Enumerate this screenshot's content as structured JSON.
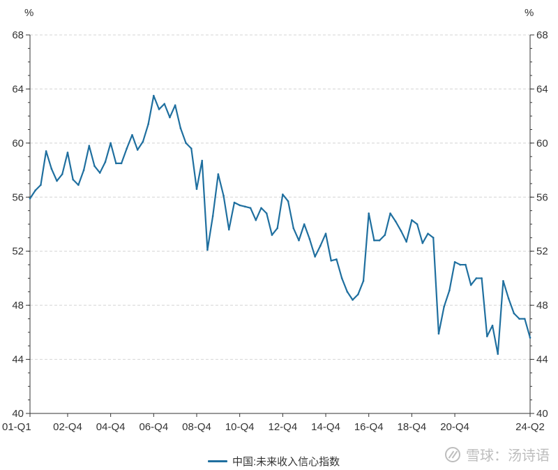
{
  "chart_data": {
    "type": "line",
    "title": "",
    "y_unit_left": "%",
    "y_unit_right": "%",
    "ylim": [
      40,
      68
    ],
    "yticks": [
      40,
      44,
      48,
      52,
      56,
      60,
      64,
      68
    ],
    "grid": true,
    "legend_position": "bottom",
    "xticks": [
      "01-Q1",
      "02-Q4",
      "04-Q4",
      "06-Q4",
      "08-Q4",
      "10-Q4",
      "12-Q4",
      "14-Q4",
      "16-Q4",
      "18-Q4",
      "20-Q4",
      "24-Q2"
    ],
    "x": [
      "01-Q1",
      "01-Q2",
      "01-Q3",
      "01-Q4",
      "02-Q1",
      "02-Q2",
      "02-Q3",
      "02-Q4",
      "03-Q1",
      "03-Q2",
      "03-Q3",
      "03-Q4",
      "04-Q1",
      "04-Q2",
      "04-Q3",
      "04-Q4",
      "05-Q1",
      "05-Q2",
      "05-Q3",
      "05-Q4",
      "06-Q1",
      "06-Q2",
      "06-Q3",
      "06-Q4",
      "07-Q1",
      "07-Q2",
      "07-Q3",
      "07-Q4",
      "08-Q1",
      "08-Q2",
      "08-Q3",
      "08-Q4",
      "09-Q1",
      "09-Q2",
      "09-Q3",
      "09-Q4",
      "10-Q1",
      "10-Q2",
      "10-Q3",
      "10-Q4",
      "11-Q1",
      "11-Q2",
      "11-Q3",
      "11-Q4",
      "12-Q1",
      "12-Q2",
      "12-Q3",
      "12-Q4",
      "13-Q1",
      "13-Q2",
      "13-Q3",
      "13-Q4",
      "14-Q1",
      "14-Q2",
      "14-Q3",
      "14-Q4",
      "15-Q1",
      "15-Q2",
      "15-Q3",
      "15-Q4",
      "16-Q1",
      "16-Q2",
      "16-Q3",
      "16-Q4",
      "17-Q1",
      "17-Q2",
      "17-Q3",
      "17-Q4",
      "18-Q1",
      "18-Q2",
      "18-Q3",
      "18-Q4",
      "19-Q1",
      "19-Q2",
      "19-Q3",
      "19-Q4",
      "20-Q1",
      "20-Q2",
      "20-Q3",
      "20-Q4",
      "21-Q1",
      "21-Q2",
      "21-Q3",
      "21-Q4",
      "22-Q1",
      "22-Q2",
      "22-Q3",
      "22-Q4",
      "23-Q1",
      "23-Q2",
      "23-Q3",
      "23-Q4",
      "24-Q1",
      "24-Q2"
    ],
    "series": [
      {
        "name": "中国:未来收入信心指数",
        "color": "#1f6f9f",
        "values": [
          55.9,
          56.5,
          56.9,
          59.4,
          58.1,
          57.2,
          57.7,
          59.3,
          57.3,
          56.9,
          58.0,
          59.8,
          58.3,
          57.8,
          58.6,
          60.0,
          58.5,
          58.5,
          59.6,
          60.6,
          59.5,
          60.1,
          61.4,
          63.5,
          62.5,
          62.9,
          61.9,
          62.8,
          61.1,
          60.0,
          59.6,
          56.6,
          58.7,
          52.1,
          54.6,
          57.7,
          56.1,
          53.6,
          55.6,
          55.4,
          55.3,
          55.2,
          54.3,
          55.2,
          54.8,
          53.2,
          53.7,
          56.2,
          55.7,
          53.7,
          52.8,
          54.0,
          52.9,
          51.6,
          52.4,
          53.3,
          51.3,
          51.4,
          50.0,
          49.0,
          48.4,
          48.8,
          49.8,
          54.8,
          52.8,
          52.8,
          53.2,
          54.8,
          54.2,
          53.5,
          52.7,
          54.3,
          54.0,
          52.6,
          53.3,
          53.0,
          45.9,
          47.9,
          49.1,
          51.2,
          51.0,
          51.0,
          49.5,
          50.0,
          50.0,
          45.7,
          46.5,
          44.4,
          49.8,
          48.5,
          47.4,
          47.0,
          47.0,
          45.6
        ]
      }
    ]
  },
  "watermark": {
    "icon": "xueqiu-logo-icon",
    "text": "雪球：汤诗语"
  }
}
